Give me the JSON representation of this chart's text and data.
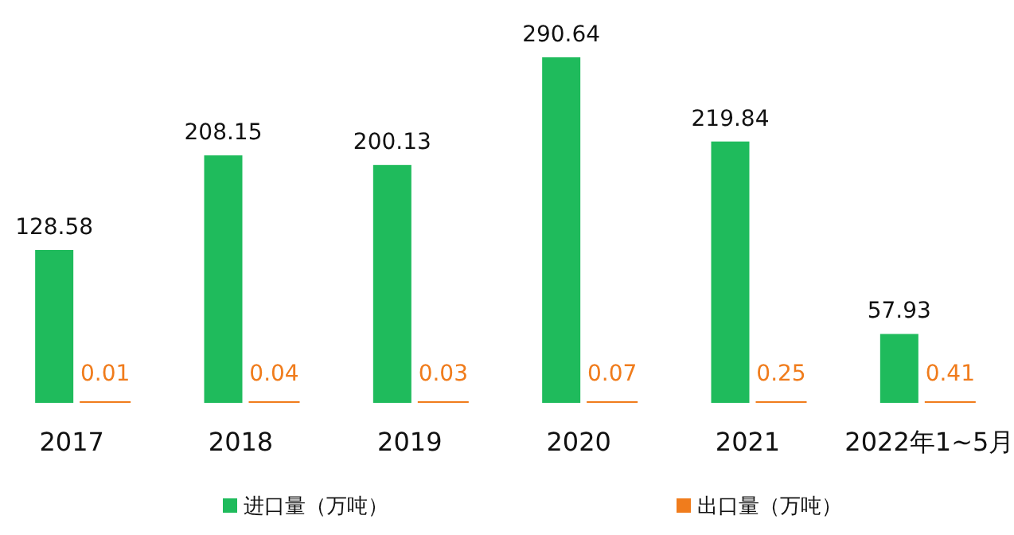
{
  "chart_data": {
    "type": "bar",
    "categories": [
      "2017",
      "2018",
      "2019",
      "2020",
      "2021",
      "2022年1~5月"
    ],
    "series": [
      {
        "name": "进口量（万吨）",
        "color": "#1fbb5c",
        "values": [
          128.58,
          208.15,
          200.13,
          290.64,
          219.84,
          57.93
        ]
      },
      {
        "name": "出口量（万吨）",
        "color": "#f07c1c",
        "values": [
          0.01,
          0.04,
          0.03,
          0.07,
          0.25,
          0.41
        ]
      }
    ],
    "data_labels": true,
    "legend": "bottom",
    "grid": false
  }
}
